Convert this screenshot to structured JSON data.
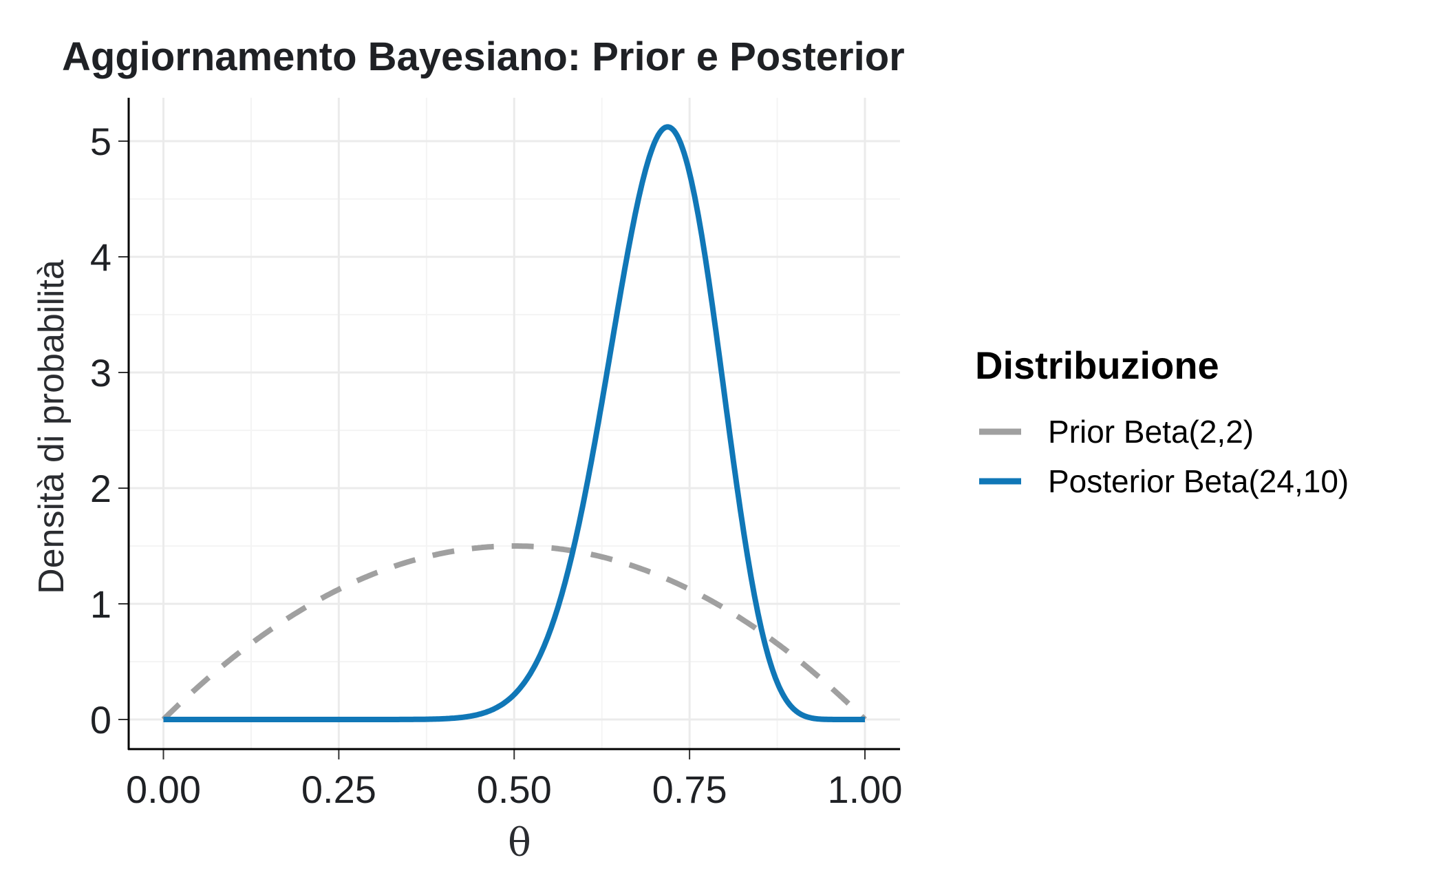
{
  "chart_data": {
    "type": "line",
    "title": "Aggiornamento Bayesiano: Prior e Posterior",
    "xlabel": "θ",
    "ylabel": "Densità di probabilità",
    "xlim": [
      0,
      1
    ],
    "ylim": [
      -0.25,
      5.4
    ],
    "xticks": [
      0,
      0.25,
      0.5,
      0.75,
      1
    ],
    "xtick_labels": [
      "0.00",
      "0.25",
      "0.50",
      "0.75",
      "1.00"
    ],
    "yticks": [
      0,
      1,
      2,
      3,
      4,
      5
    ],
    "ytick_labels": [
      "0",
      "1",
      "2",
      "3",
      "4",
      "5"
    ],
    "grid": true,
    "legend": {
      "title": "Distribuzione",
      "placement": "right"
    },
    "series": [
      {
        "name": "Prior Beta(2,2)",
        "distribution": "beta",
        "alpha": 2,
        "beta": 2,
        "color": "#a0a0a0",
        "linestyle": "dashed",
        "peak": {
          "x": 0.5,
          "y": 1.5
        }
      },
      {
        "name": "Posterior Beta(24,10)",
        "distribution": "beta",
        "alpha": 24,
        "beta": 10,
        "color": "#1077b7",
        "linestyle": "solid",
        "peak": {
          "x": 0.71875,
          "y": 5.12
        }
      }
    ]
  }
}
